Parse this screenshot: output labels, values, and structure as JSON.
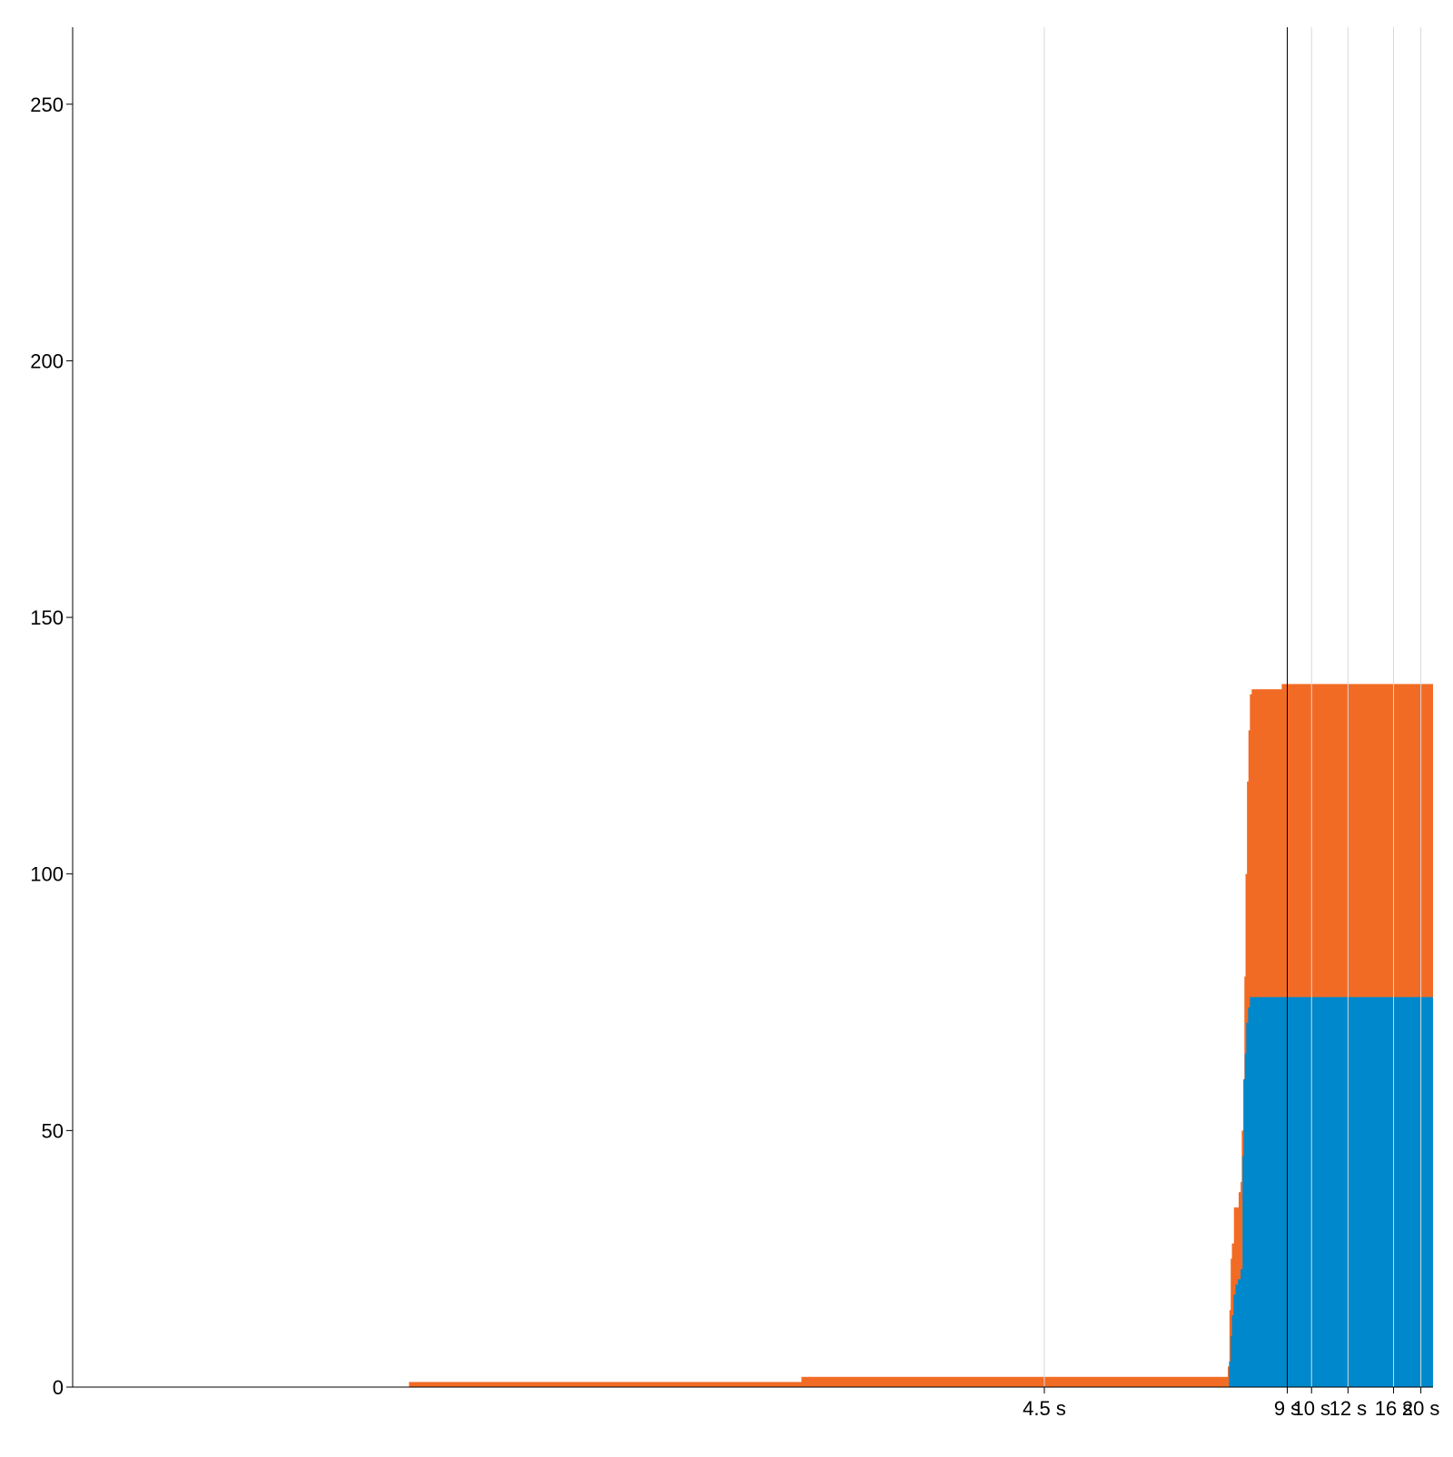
{
  "chart_data": {
    "type": "area",
    "stacked": true,
    "grid": {
      "x": true,
      "y": false
    },
    "xlim": [
      1.5,
      22.5
    ],
    "ylim": [
      0,
      265
    ],
    "x_scale": "reciprocal",
    "x_ticks": [
      {
        "value": 4.5,
        "label": "4.5 s"
      },
      {
        "value": 9,
        "label": "9 s"
      },
      {
        "value": 10,
        "label": "10 s"
      },
      {
        "value": 12,
        "label": "12 s"
      },
      {
        "value": 16,
        "label": "16 s"
      },
      {
        "value": 20,
        "label": "20 s"
      }
    ],
    "y_ticks": [
      {
        "value": 0,
        "label": "0"
      },
      {
        "value": 50,
        "label": "50"
      },
      {
        "value": 100,
        "label": "100"
      },
      {
        "value": 150,
        "label": "150"
      },
      {
        "value": 200,
        "label": "200"
      },
      {
        "value": 250,
        "label": "250"
      }
    ],
    "marker_line_x": 9,
    "series": [
      {
        "color": "#0088cc",
        "points": [
          [
            1.5,
            0
          ],
          [
            7.2,
            0
          ],
          [
            7.26,
            5
          ],
          [
            7.3,
            10
          ],
          [
            7.33,
            14
          ],
          [
            7.37,
            18
          ],
          [
            7.42,
            20
          ],
          [
            7.48,
            21
          ],
          [
            7.55,
            23
          ],
          [
            7.6,
            45
          ],
          [
            7.63,
            60
          ],
          [
            7.66,
            65
          ],
          [
            7.7,
            71
          ],
          [
            7.75,
            74
          ],
          [
            7.8,
            76
          ],
          [
            22.5,
            76
          ]
        ]
      },
      {
        "color": "#f26b24",
        "points": [
          [
            1.5,
            0
          ],
          [
            1.95,
            0
          ],
          [
            1.95,
            1
          ],
          [
            3.0,
            1
          ],
          [
            3.0,
            2
          ],
          [
            7.2,
            2
          ],
          [
            7.23,
            4
          ],
          [
            7.27,
            15
          ],
          [
            7.3,
            25
          ],
          [
            7.33,
            28
          ],
          [
            7.38,
            35
          ],
          [
            7.45,
            35
          ],
          [
            7.5,
            38
          ],
          [
            7.55,
            40
          ],
          [
            7.58,
            50
          ],
          [
            7.62,
            60
          ],
          [
            7.65,
            80
          ],
          [
            7.68,
            100
          ],
          [
            7.72,
            118
          ],
          [
            7.76,
            128
          ],
          [
            7.8,
            135
          ],
          [
            7.85,
            136
          ],
          [
            8.8,
            136
          ],
          [
            8.8,
            137
          ],
          [
            22.5,
            137
          ]
        ]
      }
    ]
  }
}
